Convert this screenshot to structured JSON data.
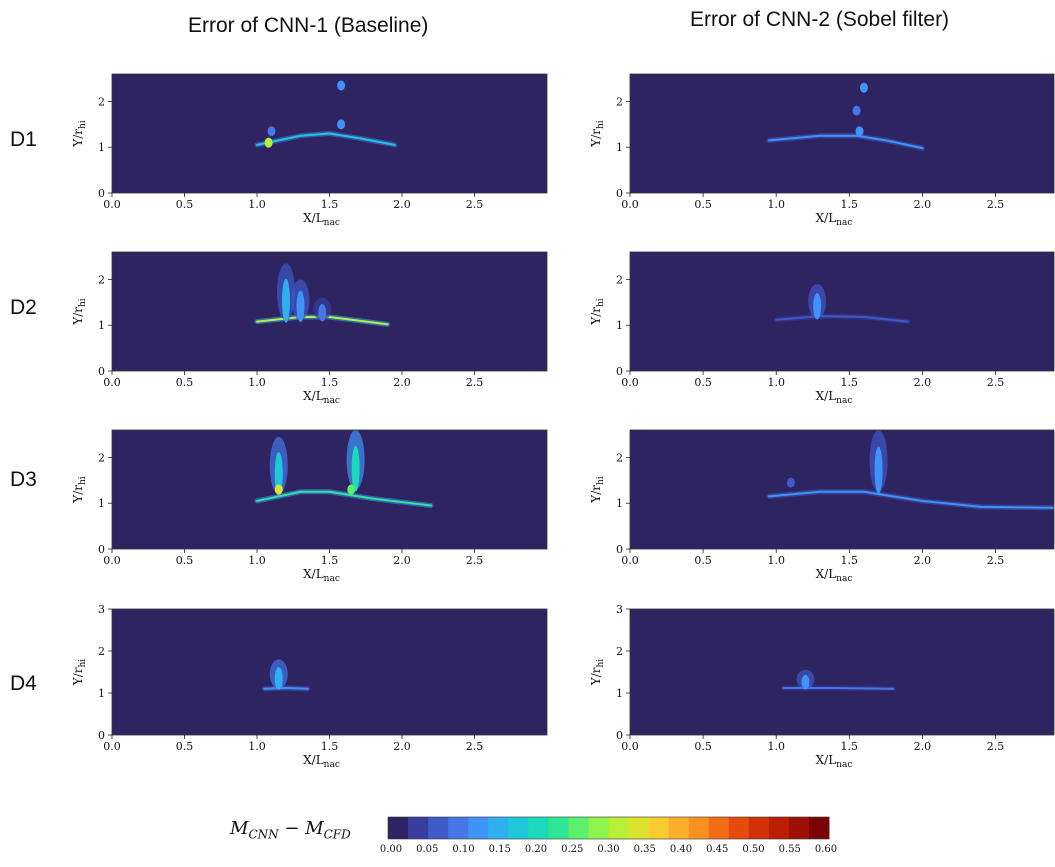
{
  "columns": [
    {
      "title": "Error of CNN-1 (Baseline)"
    },
    {
      "title": "Error of CNN-2 (Sobel filter)"
    }
  ],
  "rows": [
    "D1",
    "D2",
    "D3",
    "D4"
  ],
  "colorbar": {
    "label": "M_CNN − M_CFD",
    "label_main": "M",
    "label_sub1": "CNN",
    "label_minus": "−",
    "label_sub2": "CFD",
    "ticks": [
      "0.00",
      "0.05",
      "0.10",
      "0.15",
      "0.20",
      "0.25",
      "0.30",
      "0.35",
      "0.40",
      "0.45",
      "0.50",
      "0.55",
      "0.60"
    ],
    "colors": [
      "#2f2462",
      "#373d9e",
      "#3f59c7",
      "#4676e8",
      "#3f93f6",
      "#2fb0ee",
      "#1ec8d9",
      "#1bd9b9",
      "#2ee696",
      "#5cf06e",
      "#8ef44d",
      "#b8ef38",
      "#dde22f",
      "#f6cc2f",
      "#fcaf2d",
      "#fb8f22",
      "#f26c15",
      "#e44c0b",
      "#d13306",
      "#ba1f03",
      "#9e1002",
      "#7a0403"
    ]
  },
  "chart_data": [
    {
      "type": "heatmap",
      "panel": "CNN-1 D1",
      "column": "Error of CNN-1 (Baseline)",
      "row": "D1",
      "xlabel": "X/L_nac",
      "ylabel": "Y/r_hi",
      "xlim": [
        0,
        3.0
      ],
      "ylim": [
        0,
        2.6
      ],
      "xticks": [
        "0.0",
        "0.5",
        "1.0",
        "1.5",
        "2.0",
        "2.5"
      ],
      "yticks": [
        "0",
        "1",
        "2"
      ],
      "color_range": [
        0,
        0.6
      ],
      "features": [
        {
          "kind": "band",
          "x": [
            1.0,
            1.3,
            1.5,
            1.7,
            1.95
          ],
          "y": [
            1.05,
            1.25,
            1.3,
            1.2,
            1.05
          ],
          "value": 0.18
        },
        {
          "kind": "blob",
          "x": 1.08,
          "y": 1.1,
          "value": 0.3
        },
        {
          "kind": "blob",
          "x": 1.58,
          "y": 1.5,
          "value": 0.12
        },
        {
          "kind": "blob",
          "x": 1.58,
          "y": 2.35,
          "value": 0.1
        },
        {
          "kind": "blob",
          "x": 1.1,
          "y": 1.35,
          "value": 0.08
        }
      ]
    },
    {
      "type": "heatmap",
      "panel": "CNN-2 D1",
      "column": "Error of CNN-2 (Sobel filter)",
      "row": "D1",
      "xlabel": "X/L_nac",
      "ylabel": "Y/r_hi",
      "xlim": [
        0,
        2.9
      ],
      "ylim": [
        0,
        2.6
      ],
      "xticks": [
        "0.0",
        "0.5",
        "1.0",
        "1.5",
        "2.0",
        "2.5"
      ],
      "yticks": [
        "0",
        "1",
        "2"
      ],
      "color_range": [
        0,
        0.6
      ],
      "features": [
        {
          "kind": "band",
          "x": [
            0.95,
            1.3,
            1.55,
            1.75,
            2.0
          ],
          "y": [
            1.15,
            1.25,
            1.25,
            1.15,
            0.98
          ],
          "value": 0.12
        },
        {
          "kind": "blob",
          "x": 1.57,
          "y": 1.35,
          "value": 0.12
        },
        {
          "kind": "blob",
          "x": 1.6,
          "y": 2.3,
          "value": 0.1
        },
        {
          "kind": "blob",
          "x": 1.55,
          "y": 1.8,
          "value": 0.08
        }
      ]
    },
    {
      "type": "heatmap",
      "panel": "CNN-1 D2",
      "column": "Error of CNN-1 (Baseline)",
      "row": "D2",
      "xlabel": "X/L_nac",
      "ylabel": "Y/r_hi",
      "xlim": [
        0,
        3.0
      ],
      "ylim": [
        0,
        2.6
      ],
      "xticks": [
        "0.0",
        "0.5",
        "1.0",
        "1.5",
        "2.0",
        "2.5"
      ],
      "yticks": [
        "0",
        "1",
        "2"
      ],
      "color_range": [
        0,
        0.6
      ],
      "features": [
        {
          "kind": "band",
          "x": [
            1.0,
            1.3,
            1.5,
            1.7,
            1.9
          ],
          "y": [
            1.08,
            1.18,
            1.18,
            1.1,
            1.02
          ],
          "value": 0.3
        },
        {
          "kind": "plume",
          "x": 1.2,
          "y0": 1.1,
          "y1": 2.35,
          "value": 0.14
        },
        {
          "kind": "plume",
          "x": 1.3,
          "y0": 1.1,
          "y1": 2.0,
          "value": 0.12
        },
        {
          "kind": "plume",
          "x": 1.45,
          "y0": 1.1,
          "y1": 1.6,
          "value": 0.08
        }
      ]
    },
    {
      "type": "heatmap",
      "panel": "CNN-2 D2",
      "column": "Error of CNN-2 (Sobel filter)",
      "row": "D2",
      "xlabel": "X/L_nac",
      "ylabel": "Y/r_hi",
      "xlim": [
        0,
        2.9
      ],
      "ylim": [
        0,
        2.6
      ],
      "xticks": [
        "0.0",
        "0.5",
        "1.0",
        "1.5",
        "2.0",
        "2.5"
      ],
      "yticks": [
        "0",
        "1",
        "2"
      ],
      "color_range": [
        0,
        0.6
      ],
      "features": [
        {
          "kind": "band",
          "x": [
            1.0,
            1.3,
            1.6,
            1.9
          ],
          "y": [
            1.12,
            1.2,
            1.18,
            1.08
          ],
          "value": 0.06
        },
        {
          "kind": "plume",
          "x": 1.28,
          "y0": 1.15,
          "y1": 1.9,
          "value": 0.1
        }
      ]
    },
    {
      "type": "heatmap",
      "panel": "CNN-1 D3",
      "column": "Error of CNN-1 (Baseline)",
      "row": "D3",
      "xlabel": "X/L_nac",
      "ylabel": "Y/r_hi",
      "xlim": [
        0,
        3.0
      ],
      "ylim": [
        0,
        2.6
      ],
      "xticks": [
        "0.0",
        "0.5",
        "1.0",
        "1.5",
        "2.0",
        "2.5"
      ],
      "yticks": [
        "0",
        "1",
        "2"
      ],
      "color_range": [
        0,
        0.6
      ],
      "features": [
        {
          "kind": "band",
          "x": [
            1.0,
            1.3,
            1.5,
            1.8,
            2.2
          ],
          "y": [
            1.05,
            1.25,
            1.25,
            1.1,
            0.95
          ],
          "value": 0.22
        },
        {
          "kind": "plume",
          "x": 1.15,
          "y0": 1.2,
          "y1": 2.45,
          "value": 0.18
        },
        {
          "kind": "blob",
          "x": 1.15,
          "y": 1.3,
          "value": 0.35
        },
        {
          "kind": "plume",
          "x": 1.68,
          "y0": 1.3,
          "y1": 2.6,
          "value": 0.2
        },
        {
          "kind": "blob",
          "x": 1.65,
          "y": 1.3,
          "value": 0.25
        }
      ]
    },
    {
      "type": "heatmap",
      "panel": "CNN-2 D3",
      "column": "Error of CNN-2 (Sobel filter)",
      "row": "D3",
      "xlabel": "X/L_nac",
      "ylabel": "Y/r_hi",
      "xlim": [
        0,
        2.9
      ],
      "ylim": [
        0,
        2.6
      ],
      "xticks": [
        "0.0",
        "0.5",
        "1.0",
        "1.5",
        "2.0",
        "2.5"
      ],
      "yticks": [
        "0",
        "1",
        "2"
      ],
      "color_range": [
        0,
        0.6
      ],
      "features": [
        {
          "kind": "band",
          "x": [
            0.95,
            1.3,
            1.6,
            2.0,
            2.4,
            2.9
          ],
          "y": [
            1.15,
            1.25,
            1.25,
            1.05,
            0.92,
            0.9
          ],
          "value": 0.12
        },
        {
          "kind": "plume",
          "x": 1.7,
          "y0": 1.25,
          "y1": 2.6,
          "value": 0.12
        },
        {
          "kind": "blob",
          "x": 1.1,
          "y": 1.45,
          "value": 0.07
        }
      ]
    },
    {
      "type": "heatmap",
      "panel": "CNN-1 D4",
      "column": "Error of CNN-1 (Baseline)",
      "row": "D4",
      "xlabel": "X/L_nac",
      "ylabel": "Y/r_hi",
      "xlim": [
        0,
        3.0
      ],
      "ylim": [
        0,
        3
      ],
      "xticks": [
        "0.0",
        "0.5",
        "1.0",
        "1.5",
        "2.0",
        "2.5"
      ],
      "yticks": [
        "0",
        "1",
        "2",
        "3"
      ],
      "color_range": [
        0,
        0.6
      ],
      "features": [
        {
          "kind": "band",
          "x": [
            1.05,
            1.2,
            1.35
          ],
          "y": [
            1.1,
            1.12,
            1.1
          ],
          "value": 0.1
        },
        {
          "kind": "plume",
          "x": 1.15,
          "y0": 1.1,
          "y1": 1.8,
          "value": 0.15
        }
      ]
    },
    {
      "type": "heatmap",
      "panel": "CNN-2 D4",
      "column": "Error of CNN-2 (Sobel filter)",
      "row": "D4",
      "xlabel": "X/L_nac",
      "ylabel": "Y/r_hi",
      "xlim": [
        0,
        2.9
      ],
      "ylim": [
        0,
        3
      ],
      "xticks": [
        "0.0",
        "0.5",
        "1.0",
        "1.5",
        "2.0",
        "2.5"
      ],
      "yticks": [
        "0",
        "1",
        "2",
        "3"
      ],
      "color_range": [
        0,
        0.6
      ],
      "features": [
        {
          "kind": "band",
          "x": [
            1.05,
            1.4,
            1.8
          ],
          "y": [
            1.12,
            1.12,
            1.1
          ],
          "value": 0.08
        },
        {
          "kind": "plume",
          "x": 1.2,
          "y0": 1.1,
          "y1": 1.55,
          "value": 0.1
        }
      ]
    }
  ]
}
